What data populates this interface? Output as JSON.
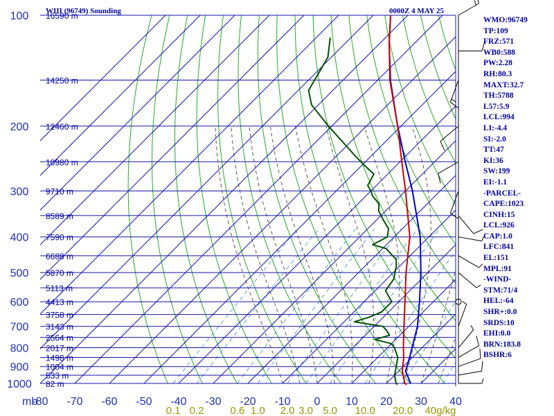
{
  "header": {
    "station": "WIII (96749) Sounding",
    "time": "0000Z  4 MAY 25"
  },
  "colors": {
    "grid": "#1414a8",
    "dry_adiabat": "#22aa22",
    "moist_adiabat": "#555555",
    "mixing_ratio": "#5aa0d8",
    "temperature": "#cc0000",
    "dewpoint": "#005000",
    "parcel": "#0000cc",
    "wind": "#000000",
    "text": "#0000a0",
    "mixing_label": "#999900"
  },
  "chart_data": {
    "type": "skew-t",
    "y_unit_label": "mb",
    "pressure_levels": [
      "100",
      "200",
      "300",
      "400",
      "500",
      "600",
      "700",
      "800",
      "900",
      "1000"
    ],
    "height_labels": [
      {
        "p": 100,
        "label": "16590 m"
      },
      {
        "p": 150,
        "label": "14250 m"
      },
      {
        "p": 200,
        "label": "12460 m"
      },
      {
        "p": 250,
        "label": "10980 m"
      },
      {
        "p": 300,
        "label": "9710 m"
      },
      {
        "p": 350,
        "label": "8589 m"
      },
      {
        "p": 400,
        "label": "7590 m"
      },
      {
        "p": 450,
        "label": "6688 m"
      },
      {
        "p": 500,
        "label": "5870 m"
      },
      {
        "p": 550,
        "label": "5113 m"
      },
      {
        "p": 600,
        "label": "4413 m"
      },
      {
        "p": 650,
        "label": "3758 m"
      },
      {
        "p": 700,
        "label": "3143 m"
      },
      {
        "p": 750,
        "label": "2564 m"
      },
      {
        "p": 800,
        "label": "2017 m"
      },
      {
        "p": 850,
        "label": "1498 m"
      },
      {
        "p": 900,
        "label": "1004 m"
      },
      {
        "p": 950,
        "label": "533 m"
      },
      {
        "p": 1000,
        "label": "82 m"
      }
    ],
    "temperature_ticks": [
      "-80",
      "-70",
      "-60",
      "-50",
      "-40",
      "-30",
      "-20",
      "-10",
      "0",
      "10",
      "20",
      "30",
      "40"
    ],
    "mixing_ratio_labels": [
      "0.1",
      "0.2",
      "0.6",
      "1.0",
      "2.0",
      "3.0",
      "5.0",
      "10.0",
      "20.0",
      "40g/kg"
    ],
    "mixing_ratio_values": [
      0.1,
      0.2,
      0.6,
      1.0,
      2.0,
      3.0,
      5.0,
      10.0,
      20.0,
      40.0
    ],
    "ylim_mb": [
      1000,
      100
    ],
    "temperature_profile": [
      {
        "p": 1008,
        "t": 26.2
      },
      {
        "p": 1000,
        "t": 25.3
      },
      {
        "p": 925,
        "t": 21.0
      },
      {
        "p": 850,
        "t": 17.5
      },
      {
        "p": 800,
        "t": 14.6
      },
      {
        "p": 700,
        "t": 8.6
      },
      {
        "p": 600,
        "t": 1.8
      },
      {
        "p": 500,
        "t": -6.3
      },
      {
        "p": 400,
        "t": -15.5
      },
      {
        "p": 300,
        "t": -30.0
      },
      {
        "p": 250,
        "t": -39.5
      },
      {
        "p": 200,
        "t": -51.0
      },
      {
        "p": 150,
        "t": -66.5
      },
      {
        "p": 120,
        "t": -77.0
      },
      {
        "p": 100,
        "t": -85.0
      }
    ],
    "dewpoint_profile": [
      {
        "p": 1008,
        "t": 23.5
      },
      {
        "p": 1000,
        "t": 22.8
      },
      {
        "p": 950,
        "t": 20.0
      },
      {
        "p": 925,
        "t": 19.0
      },
      {
        "p": 850,
        "t": 15.8
      },
      {
        "p": 800,
        "t": 12.0
      },
      {
        "p": 780,
        "t": 10.0
      },
      {
        "p": 760,
        "t": 4.0
      },
      {
        "p": 740,
        "t": 7.0
      },
      {
        "p": 720,
        "t": 5.0
      },
      {
        "p": 700,
        "t": 2.5
      },
      {
        "p": 680,
        "t": -7.0
      },
      {
        "p": 660,
        "t": -4.0
      },
      {
        "p": 640,
        "t": -2.0
      },
      {
        "p": 600,
        "t": -2.0
      },
      {
        "p": 560,
        "t": -7.0
      },
      {
        "p": 520,
        "t": -8.0
      },
      {
        "p": 500,
        "t": -9.5
      },
      {
        "p": 480,
        "t": -11.0
      },
      {
        "p": 460,
        "t": -13.0
      },
      {
        "p": 450,
        "t": -15.0
      },
      {
        "p": 430,
        "t": -19.0
      },
      {
        "p": 420,
        "t": -24.0
      },
      {
        "p": 400,
        "t": -22.0
      },
      {
        "p": 380,
        "t": -24.0
      },
      {
        "p": 360,
        "t": -28.0
      },
      {
        "p": 340,
        "t": -32.0
      },
      {
        "p": 325,
        "t": -34.0
      },
      {
        "p": 310,
        "t": -38.0
      },
      {
        "p": 300,
        "t": -40.0
      },
      {
        "p": 290,
        "t": -42.5
      },
      {
        "p": 270,
        "t": -44.0
      },
      {
        "p": 255,
        "t": -49.5
      },
      {
        "p": 240,
        "t": -55.0
      },
      {
        "p": 200,
        "t": -71.0
      },
      {
        "p": 175,
        "t": -82.0
      },
      {
        "p": 160,
        "t": -87.0
      },
      {
        "p": 130,
        "t": -91.0
      },
      {
        "p": 115,
        "t": -96.0
      }
    ],
    "parcel_profile": [
      {
        "p": 1000,
        "t": 27.0
      },
      {
        "p": 926,
        "t": 22.0
      },
      {
        "p": 850,
        "t": 19.2
      },
      {
        "p": 700,
        "t": 12.5
      },
      {
        "p": 600,
        "t": 6.0
      },
      {
        "p": 500,
        "t": -2.0
      },
      {
        "p": 400,
        "t": -12.5
      },
      {
        "p": 300,
        "t": -28.0
      },
      {
        "p": 250,
        "t": -38.5
      },
      {
        "p": 200,
        "t": -51.0
      },
      {
        "p": 151,
        "t": -66.0
      },
      {
        "p": 120,
        "t": -77.0
      },
      {
        "p": 100,
        "t": -85.0
      }
    ],
    "winds": [
      {
        "p": 1000,
        "dir": 90,
        "spd": 5
      },
      {
        "p": 950,
        "dir": 80,
        "spd": 10
      },
      {
        "p": 900,
        "dir": 70,
        "spd": 10
      },
      {
        "p": 850,
        "dir": 60,
        "spd": 10
      },
      {
        "p": 800,
        "dir": 40,
        "spd": 5
      },
      {
        "p": 700,
        "dir": 20,
        "spd": 5
      },
      {
        "p": 600,
        "dir": 0,
        "spd": 0
      },
      {
        "p": 500,
        "dir": 130,
        "spd": 5
      },
      {
        "p": 450,
        "dir": 120,
        "spd": 5
      },
      {
        "p": 400,
        "dir": 100,
        "spd": 5
      },
      {
        "p": 350,
        "dir": 140,
        "spd": 10
      },
      {
        "p": 300,
        "dir": 200,
        "spd": 10
      },
      {
        "p": 250,
        "dir": 240,
        "spd": 10
      },
      {
        "p": 200,
        "dir": 230,
        "spd": 10
      },
      {
        "p": 150,
        "dir": 200,
        "spd": 15
      },
      {
        "p": 125,
        "dir": 90,
        "spd": 10
      },
      {
        "p": 100,
        "dir": 60,
        "spd": 15
      }
    ]
  },
  "indices": [
    "WMO:96749",
    "TP:109",
    "FRZ:571",
    "WB0:588",
    "PW:2.28",
    "RH:80.3",
    "MAXT:32.7",
    "TH:5788",
    "L57:5.9",
    "LCL:994",
    "LI:-4.4",
    "SI:-2.0",
    "TT:47",
    "KI:36",
    "SW:199",
    "EI:-1.1",
    "-PARCEL-",
    "CAPE:1023",
    "CINH:15",
    "LCL:926",
    "CAP:1.0",
    "LFC:841",
    "EL:151",
    "MPL:91",
    "-WIND-",
    "STM:71/4",
    "HEL:-64",
    "SHR+:0.0",
    "SRDS:10",
    "EHI:0.0",
    "BRN:183.8",
    "BSHR:6"
  ]
}
